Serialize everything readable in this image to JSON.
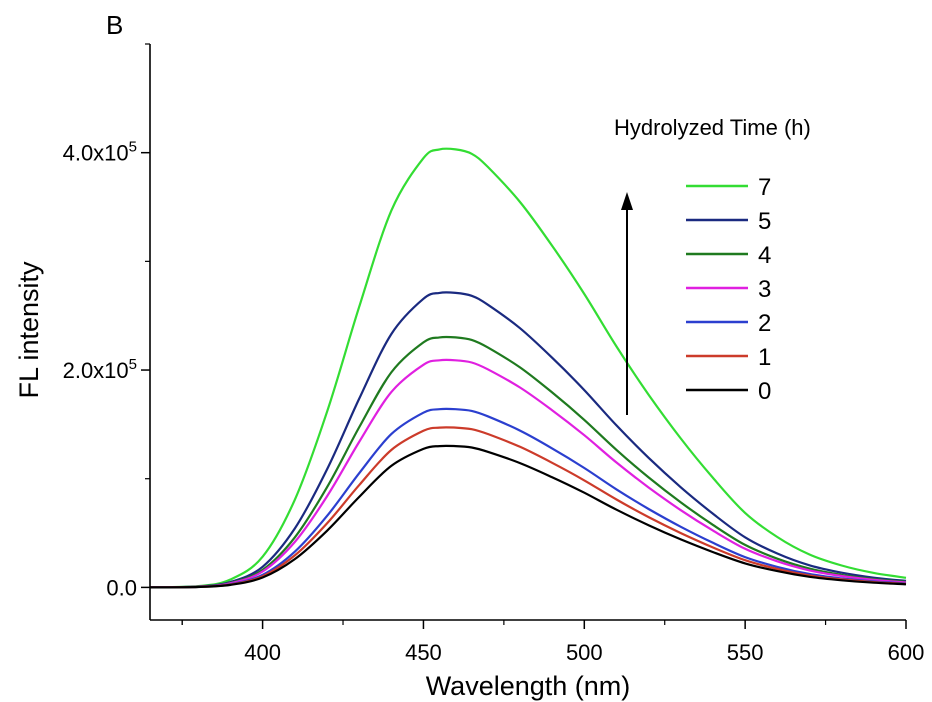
{
  "panel_label": "B",
  "chart_data": {
    "type": "line",
    "xlabel": "Wavelength (nm)",
    "ylabel": "FL intensity",
    "xlim": [
      365,
      600
    ],
    "ylim": [
      -30000,
      500000
    ],
    "x_ticks": [
      400,
      450,
      500,
      550,
      600
    ],
    "y_ticks": [
      {
        "value": 0,
        "mantissa": "0.0",
        "exponent": ""
      },
      {
        "value": 200000,
        "mantissa": "2.0x10",
        "exponent": "5"
      },
      {
        "value": 400000,
        "mantissa": "4.0x10",
        "exponent": "5"
      }
    ],
    "legend_title": "Hydrolyzed Time (h)",
    "legend_placement": "top-right",
    "annotation": "upward arrow indicating increasing intensity with hydrolyzed time",
    "x": [
      365,
      380,
      390,
      400,
      410,
      420,
      430,
      440,
      450,
      455,
      460,
      465,
      470,
      480,
      490,
      500,
      510,
      520,
      530,
      540,
      550,
      560,
      570,
      580,
      590,
      600
    ],
    "series": [
      {
        "name": "7",
        "color": "#33dd33",
        "peak": 403000,
        "offset": 0.0
      },
      {
        "name": "5",
        "color": "#1a2a80",
        "peak": 271000,
        "offset": 0.008
      },
      {
        "name": "4",
        "color": "#1f7a1f",
        "peak": 230000,
        "offset": 0.008
      },
      {
        "name": "3",
        "color": "#e020e0",
        "peak": 209000,
        "offset": 0.008
      },
      {
        "name": "2",
        "color": "#2b3fcf",
        "peak": 164000,
        "offset": 0.008
      },
      {
        "name": "1",
        "color": "#cc3b2a",
        "peak": 147000,
        "offset": 0.008
      },
      {
        "name": "0",
        "color": "#000000",
        "peak": 130000,
        "offset": 0.008
      }
    ],
    "shape": [
      0.0,
      0.003,
      0.018,
      0.07,
      0.2,
      0.4,
      0.64,
      0.86,
      0.98,
      1.0,
      1.0,
      0.99,
      0.96,
      0.88,
      0.78,
      0.67,
      0.55,
      0.44,
      0.34,
      0.25,
      0.17,
      0.115,
      0.075,
      0.05,
      0.033,
      0.022
    ]
  }
}
